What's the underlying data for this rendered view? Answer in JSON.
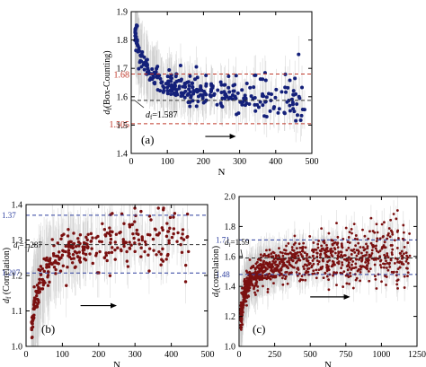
{
  "chart_data": [
    {
      "type": "scatter",
      "panel_label": "(a)",
      "xlabel": "N",
      "ylabel": "d",
      "ylabel_sub": "f",
      "ylabel_suffix": "(Box-Counting)",
      "xlim": [
        0,
        500
      ],
      "ylim": [
        1.4,
        1.9
      ],
      "xticks": [
        "0",
        "100",
        "200",
        "300",
        "400",
        "500"
      ],
      "yticks": [
        "1.4",
        "1.5",
        "1.6",
        "1.7",
        "1.8",
        "1.9"
      ],
      "point_color": "#14207a",
      "errorbar_color": "#c8c8c8",
      "mean_annotation": "=1.587",
      "mean_symbol": "d",
      "mean_symbol_sub": "f",
      "reference_lines": [
        {
          "label": "1.68",
          "value": 1.68,
          "color": "#c0392b"
        },
        {
          "label": "",
          "value": 1.587,
          "color": "#333333"
        },
        {
          "label": "1.505",
          "value": 1.505,
          "color": "#c0392b"
        }
      ],
      "arrow": {
        "x_start": 205,
        "x_end": 290,
        "y": 1.46
      },
      "trend": {
        "x": [
          10,
          20,
          35,
          50,
          75,
          100,
          150,
          200,
          250,
          300,
          350,
          400,
          450
        ],
        "y": [
          1.83,
          1.76,
          1.72,
          1.69,
          1.665,
          1.645,
          1.63,
          1.62,
          1.61,
          1.6,
          1.595,
          1.59,
          1.585
        ]
      },
      "range_x": [
        10,
        480
      ]
    },
    {
      "type": "scatter",
      "panel_label": "(b)",
      "xlabel": "N",
      "ylabel": "d",
      "ylabel_sub": "f",
      "ylabel_suffix": " (Correlation)",
      "xlim": [
        0,
        500
      ],
      "ylim": [
        1.0,
        1.4
      ],
      "xticks": [
        "0",
        "100",
        "200",
        "300",
        "400",
        "500"
      ],
      "yticks": [
        "1.0",
        "1.1",
        "1.2",
        "1.3",
        "1.4"
      ],
      "point_color": "#7a1010",
      "errorbar_color": "#cccccc",
      "mean_annotation": "=1.287",
      "mean_symbol": "d",
      "mean_symbol_sub": "f",
      "reference_lines": [
        {
          "label": "1.37",
          "value": 1.37,
          "color": "#2c3e9e"
        },
        {
          "label": "",
          "value": 1.287,
          "color": "#333333"
        },
        {
          "label": "1.207",
          "value": 1.207,
          "color": "#2c3e9e"
        }
      ],
      "arrow": {
        "x_start": 150,
        "x_end": 250,
        "y": 1.115
      },
      "trend": {
        "x": [
          15,
          25,
          40,
          60,
          80,
          100,
          150,
          200,
          250,
          300,
          350,
          400,
          450
        ],
        "y": [
          1.05,
          1.13,
          1.19,
          1.23,
          1.25,
          1.265,
          1.28,
          1.29,
          1.295,
          1.298,
          1.3,
          1.302,
          1.303
        ]
      },
      "range_x": [
        15,
        450
      ]
    },
    {
      "type": "scatter",
      "panel_label": "(c)",
      "xlabel": "N",
      "ylabel": "d",
      "ylabel_sub": "f",
      "ylabel_suffix": "(correlation)",
      "xlim": [
        0,
        1250
      ],
      "ylim": [
        1.0,
        2.0
      ],
      "xticks": [
        "0",
        "250",
        "500",
        "750",
        "1000",
        "1250"
      ],
      "yticks": [
        "1.0",
        "1.2",
        "1.4",
        "1.6",
        "1.8",
        "2.0"
      ],
      "point_color": "#7a1010",
      "errorbar_color": "#cccccc",
      "mean_annotation": "=1.59",
      "mean_symbol": "d",
      "mean_symbol_sub": "f",
      "reference_lines": [
        {
          "label": "1.71",
          "value": 1.71,
          "color": "#2c3e9e"
        },
        {
          "label": "",
          "value": 1.59,
          "color": "#333333"
        },
        {
          "label": "1.48",
          "value": 1.48,
          "color": "#2c3e9e"
        }
      ],
      "arrow": {
        "x_start": 500,
        "x_end": 780,
        "y": 1.33
      },
      "trend": {
        "x": [
          15,
          40,
          80,
          150,
          250,
          400,
          600,
          800,
          1000,
          1050,
          1100,
          1150,
          1200
        ],
        "y": [
          1.2,
          1.38,
          1.45,
          1.5,
          1.54,
          1.57,
          1.585,
          1.6,
          1.62,
          1.64,
          1.62,
          1.58,
          1.56
        ]
      },
      "range_x": [
        10,
        1200
      ]
    }
  ]
}
